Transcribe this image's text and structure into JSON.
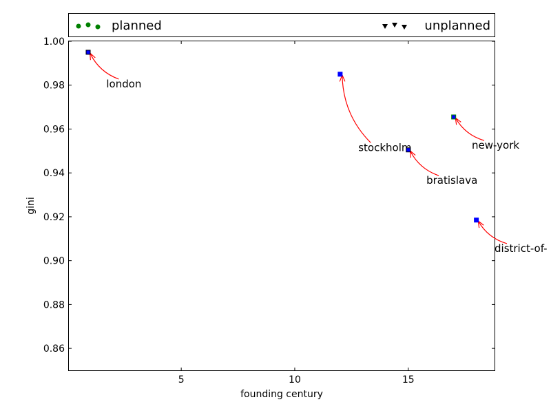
{
  "chart_data": {
    "type": "scatter",
    "xlabel": "founding century",
    "ylabel": "gini",
    "xlim": [
      0.05,
      18.8
    ],
    "ylim": [
      0.85,
      1.0
    ],
    "xticks": [
      5,
      10,
      15
    ],
    "xtick_labels": [
      "5",
      "10",
      "15"
    ],
    "yticks": [
      0.86,
      0.88,
      0.9,
      0.92,
      0.94,
      0.96,
      0.98,
      1.0
    ],
    "ytick_labels": [
      "0.86",
      "0.88",
      "0.90",
      "0.92",
      "0.94",
      "0.96",
      "0.98",
      "1.00"
    ],
    "grid": false,
    "legend": {
      "placement": "top",
      "entries": [
        {
          "label": "planned",
          "marker": "circle",
          "color": "#008000"
        },
        {
          "label": "unplanned",
          "marker": "triangle-down",
          "color": "#000000"
        }
      ]
    },
    "points": [
      {
        "x": 0.9,
        "y": 0.995,
        "color": "#0000ff",
        "edge": "#000000"
      },
      {
        "x": 12.0,
        "y": 0.985,
        "color": "#0000ff",
        "edge": "#0000ff"
      },
      {
        "x": 15.0,
        "y": 0.9505,
        "color": "#0000ff",
        "edge": "#000000"
      },
      {
        "x": 17.0,
        "y": 0.9655,
        "color": "#0000ff",
        "edge": "#008000"
      },
      {
        "x": 18.0,
        "y": 0.9185,
        "color": "#0000ff",
        "edge": "#0000ff"
      }
    ],
    "annotations": [
      {
        "text": "london",
        "x": 0.9,
        "y": 0.995,
        "tx": 1.7,
        "ty": 0.979
      },
      {
        "text": "stockholm",
        "x": 12.0,
        "y": 0.985,
        "tx": 12.8,
        "ty": 0.95
      },
      {
        "text": "bratislava",
        "x": 15.0,
        "y": 0.9505,
        "tx": 15.8,
        "ty": 0.935
      },
      {
        "text": "new-york",
        "x": 17.0,
        "y": 0.9655,
        "tx": 17.8,
        "ty": 0.951
      },
      {
        "text": "district-of-",
        "x": 18.0,
        "y": 0.9185,
        "tx": 18.8,
        "ty": 0.904
      }
    ],
    "arrow_color": "#ff0000"
  }
}
